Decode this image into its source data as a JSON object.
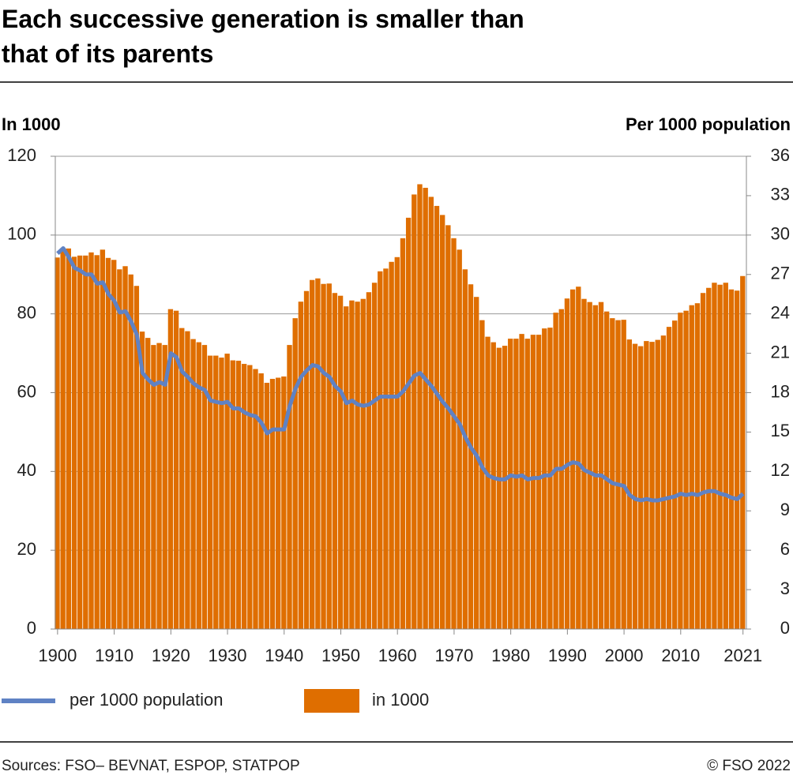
{
  "chart_data": {
    "type": "bar",
    "title": "Each successive generation is smaller than that of its parents",
    "y_label": "In 1000",
    "y2_label": "Per 1000 population",
    "source": "Sources: FSO– BEVNAT, ESPOP, STATPOP",
    "copyright": "© FSO 2022",
    "x": [
      1900,
      1901,
      1902,
      1903,
      1904,
      1905,
      1906,
      1907,
      1908,
      1909,
      1910,
      1911,
      1912,
      1913,
      1914,
      1915,
      1916,
      1917,
      1918,
      1919,
      1920,
      1921,
      1922,
      1923,
      1924,
      1925,
      1926,
      1927,
      1928,
      1929,
      1930,
      1931,
      1932,
      1933,
      1934,
      1935,
      1936,
      1937,
      1938,
      1939,
      1940,
      1941,
      1942,
      1943,
      1944,
      1945,
      1946,
      1947,
      1948,
      1949,
      1950,
      1951,
      1952,
      1953,
      1954,
      1955,
      1956,
      1957,
      1958,
      1959,
      1960,
      1961,
      1962,
      1963,
      1964,
      1965,
      1966,
      1967,
      1968,
      1969,
      1970,
      1971,
      1972,
      1973,
      1974,
      1975,
      1976,
      1977,
      1978,
      1979,
      1980,
      1981,
      1982,
      1983,
      1984,
      1985,
      1986,
      1987,
      1988,
      1989,
      1990,
      1991,
      1992,
      1993,
      1994,
      1995,
      1996,
      1997,
      1998,
      1999,
      2000,
      2001,
      2002,
      2003,
      2004,
      2005,
      2006,
      2007,
      2008,
      2009,
      2010,
      2011,
      2012,
      2013,
      2014,
      2015,
      2016,
      2017,
      2018,
      2019,
      2020,
      2021
    ],
    "series": [
      {
        "name": "per 1000 population",
        "type": "line",
        "axis": "y2",
        "color": "#5f82c4",
        "values": [
          28.6,
          29.0,
          28.3,
          27.5,
          27.3,
          27.0,
          27.0,
          26.3,
          26.4,
          25.5,
          25.0,
          24.1,
          24.2,
          23.4,
          22.4,
          19.5,
          19.0,
          18.6,
          18.8,
          18.6,
          21.0,
          20.7,
          19.6,
          19.2,
          18.7,
          18.4,
          18.2,
          17.4,
          17.3,
          17.2,
          17.3,
          16.8,
          16.8,
          16.5,
          16.3,
          16.2,
          15.7,
          14.9,
          15.2,
          15.2,
          15.2,
          17.0,
          18.3,
          19.2,
          19.7,
          20.1,
          20.0,
          19.5,
          19.2,
          18.5,
          18.1,
          17.2,
          17.4,
          17.1,
          17.0,
          17.1,
          17.4,
          17.7,
          17.7,
          17.7,
          17.7,
          18.1,
          18.7,
          19.3,
          19.5,
          19.0,
          18.5,
          17.9,
          17.3,
          16.8,
          16.2,
          15.6,
          14.6,
          13.8,
          13.2,
          12.3,
          11.7,
          11.5,
          11.4,
          11.4,
          11.7,
          11.6,
          11.7,
          11.4,
          11.5,
          11.5,
          11.7,
          11.7,
          12.2,
          12.2,
          12.5,
          12.7,
          12.6,
          12.1,
          11.9,
          11.7,
          11.7,
          11.4,
          11.1,
          11.0,
          10.9,
          10.2,
          9.9,
          9.8,
          9.9,
          9.8,
          9.8,
          9.9,
          10.0,
          10.1,
          10.3,
          10.2,
          10.3,
          10.2,
          10.4,
          10.5,
          10.5,
          10.3,
          10.2,
          10.0,
          9.9,
          10.3
        ]
      },
      {
        "name": "in 1000",
        "type": "bar",
        "color": "#df6e00",
        "values": [
          94.3,
          96.5,
          96.6,
          94.5,
          94.8,
          94.8,
          95.6,
          94.9,
          96.3,
          94.2,
          93.7,
          91.3,
          92.1,
          90.0,
          87.1,
          75.5,
          73.9,
          72.1,
          72.6,
          72.1,
          81.2,
          80.8,
          76.4,
          75.6,
          73.6,
          72.8,
          72.1,
          69.4,
          69.4,
          68.9,
          69.9,
          68.2,
          68.1,
          67.3,
          67.0,
          66.0,
          64.9,
          62.5,
          63.5,
          63.8,
          64.1,
          72.1,
          78.9,
          83.1,
          85.8,
          88.6,
          89.0,
          87.6,
          87.7,
          85.3,
          84.6,
          81.9,
          83.4,
          83.1,
          83.8,
          85.5,
          87.9,
          90.8,
          91.5,
          93.2,
          94.4,
          99.2,
          104.4,
          110.3,
          112.9,
          112.0,
          109.7,
          107.4,
          105.1,
          102.5,
          99.2,
          96.3,
          91.3,
          87.5,
          84.3,
          78.4,
          74.2,
          72.8,
          71.4,
          71.9,
          73.7,
          73.7,
          74.9,
          73.7,
          74.7,
          74.7,
          76.3,
          76.5,
          80.3,
          81.2,
          83.9,
          86.2,
          86.9,
          83.8,
          83.0,
          82.2,
          83.0,
          80.6,
          78.9,
          78.4,
          78.5,
          73.5,
          72.4,
          71.8,
          73.1,
          72.9,
          73.4,
          74.5,
          76.7,
          78.3,
          80.3,
          80.8,
          82.2,
          82.7,
          85.3,
          86.6,
          87.9,
          87.4,
          87.9,
          86.2,
          85.9,
          89.6
        ]
      }
    ],
    "xlim": [
      1899.6,
      2021.6
    ],
    "xticks": [
      1900,
      1910,
      1920,
      1930,
      1940,
      1950,
      1960,
      1970,
      1980,
      1990,
      2000,
      2010,
      2021
    ],
    "ylim": [
      0,
      120
    ],
    "yticks": [
      0,
      20,
      40,
      60,
      80,
      100,
      120
    ],
    "y2lim": [
      0,
      36
    ],
    "y2ticks": [
      0,
      3,
      6,
      9,
      12,
      15,
      18,
      21,
      24,
      27,
      30,
      33,
      36
    ],
    "grid": true
  }
}
